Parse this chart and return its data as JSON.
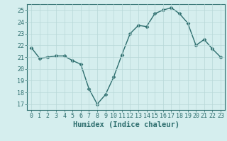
{
  "x": [
    0,
    1,
    2,
    3,
    4,
    5,
    6,
    7,
    8,
    9,
    10,
    11,
    12,
    13,
    14,
    15,
    16,
    17,
    18,
    19,
    20,
    21,
    22,
    23
  ],
  "y": [
    21.8,
    20.9,
    21.0,
    21.1,
    21.1,
    20.7,
    20.4,
    18.3,
    17.0,
    17.8,
    19.3,
    21.2,
    23.0,
    23.7,
    23.6,
    24.7,
    25.0,
    25.2,
    24.7,
    23.9,
    22.0,
    22.5,
    21.7,
    21.0
  ],
  "line_color": "#2d6e6e",
  "marker": "D",
  "marker_size": 2.5,
  "bg_color": "#d5eeee",
  "grid_color": "#b8d8d8",
  "xlabel": "Humidex (Indice chaleur)",
  "ylim": [
    16.5,
    25.5
  ],
  "yticks": [
    17,
    18,
    19,
    20,
    21,
    22,
    23,
    24,
    25
  ],
  "xticks": [
    0,
    1,
    2,
    3,
    4,
    5,
    6,
    7,
    8,
    9,
    10,
    11,
    12,
    13,
    14,
    15,
    16,
    17,
    18,
    19,
    20,
    21,
    22,
    23
  ],
  "tick_label_fontsize": 6,
  "xlabel_fontsize": 7.5,
  "axis_color": "#2d6e6e",
  "grid_linewidth": 0.5,
  "line_width": 1.0,
  "xlim": [
    -0.5,
    23.5
  ]
}
